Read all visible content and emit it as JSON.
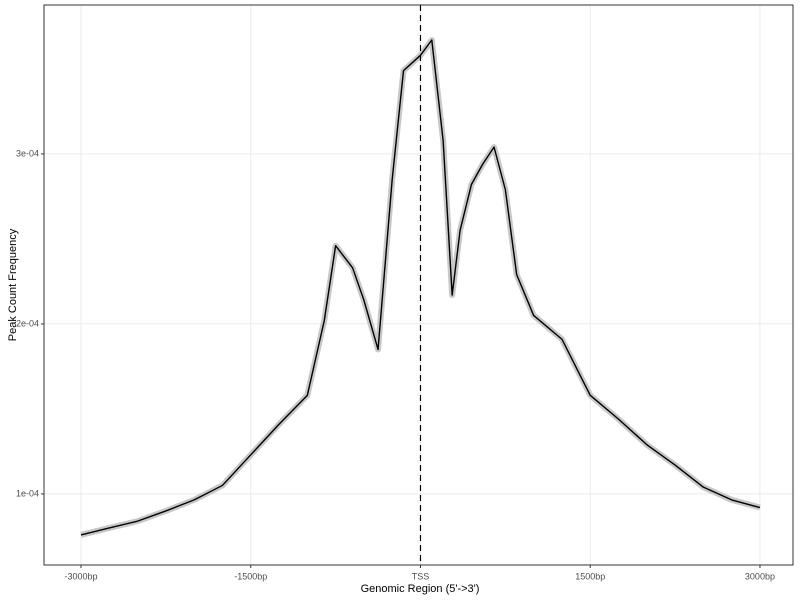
{
  "chart_data": {
    "type": "line",
    "x_label": "Genomic Region (5'->3')",
    "y_label": "Peak Count Frequency",
    "x": [
      -3000,
      -2750,
      -2500,
      -2250,
      -2000,
      -1750,
      -1500,
      -1250,
      -1000,
      -850,
      -750,
      -600,
      -500,
      -375,
      -250,
      -150,
      0,
      100,
      200,
      280,
      350,
      450,
      550,
      650,
      750,
      850,
      1000,
      1250,
      1500,
      1750,
      2000,
      2250,
      2500,
      2750,
      3000
    ],
    "series": [
      {
        "color": "#000000",
        "band_color": "#c8c8c8",
        "values": [
          7.59e-05,
          8e-05,
          8.4e-05,
          9e-05,
          9.65e-05,
          0.000105,
          0.000123,
          0.000141,
          0.000158,
          0.000202,
          0.000246,
          0.000233,
          0.000214,
          0.000185,
          0.000285,
          0.000349,
          0.000358,
          0.000367,
          0.000308,
          0.000217,
          0.000255,
          0.000282,
          0.000294,
          0.000304,
          0.000279,
          0.000229,
          0.000205,
          0.000191,
          0.000158,
          0.000144,
          0.000129,
          0.000117,
          0.000104,
          9.65e-05,
          9.2e-05
        ]
      }
    ],
    "vline": 0,
    "xlim": [
      -3327,
      3292
    ],
    "ylim": [
      5.82e-05,
      0.0003876
    ],
    "xticks": [
      {
        "value": -3000,
        "label": "-3000bp"
      },
      {
        "value": -1500,
        "label": "-1500bp"
      },
      {
        "value": 0,
        "label": "TSS"
      },
      {
        "value": 1500,
        "label": "1500bp"
      },
      {
        "value": 3000,
        "label": "3000bp"
      }
    ],
    "yticks": [
      {
        "value": 0.0001,
        "label": "1e-04"
      },
      {
        "value": 0.0002,
        "label": "2e-04"
      },
      {
        "value": 0.0003,
        "label": "3e-04"
      }
    ],
    "grid": true
  }
}
